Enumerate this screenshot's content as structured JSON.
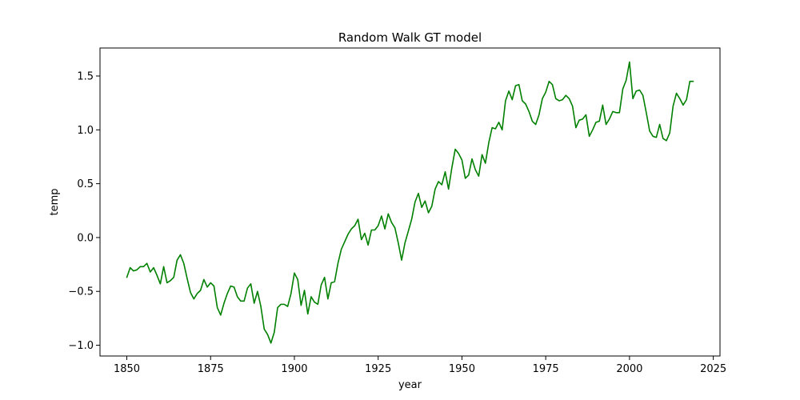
{
  "chart_data": {
    "type": "line",
    "title": "Random Walk GT model",
    "xlabel": "year",
    "ylabel": "temp",
    "xlim": [
      1842,
      2027
    ],
    "ylim": [
      -1.1,
      1.76
    ],
    "xticks": [
      1850,
      1875,
      1900,
      1925,
      1950,
      1975,
      2000,
      2025
    ],
    "yticks": [
      -1.0,
      -0.5,
      0.0,
      0.5,
      1.0,
      1.5
    ],
    "grid": false,
    "line_color": "#008000",
    "x_start": 1850,
    "series": [
      {
        "values": [
          -0.37,
          -0.28,
          -0.31,
          -0.3,
          -0.27,
          -0.27,
          -0.24,
          -0.32,
          -0.28,
          -0.35,
          -0.43,
          -0.27,
          -0.42,
          -0.4,
          -0.37,
          -0.21,
          -0.16,
          -0.24,
          -0.38,
          -0.51,
          -0.57,
          -0.52,
          -0.49,
          -0.39,
          -0.46,
          -0.42,
          -0.45,
          -0.65,
          -0.72,
          -0.61,
          -0.52,
          -0.45,
          -0.46,
          -0.55,
          -0.59,
          -0.59,
          -0.47,
          -0.43,
          -0.61,
          -0.5,
          -0.64,
          -0.85,
          -0.9,
          -0.98,
          -0.88,
          -0.65,
          -0.62,
          -0.62,
          -0.64,
          -0.52,
          -0.33,
          -0.39,
          -0.63,
          -0.49,
          -0.71,
          -0.55,
          -0.6,
          -0.62,
          -0.44,
          -0.37,
          -0.57,
          -0.42,
          -0.41,
          -0.24,
          -0.11,
          -0.04,
          0.03,
          0.08,
          0.11,
          0.17,
          -0.02,
          0.04,
          -0.07,
          0.07,
          0.07,
          0.11,
          0.2,
          0.08,
          0.22,
          0.14,
          0.09,
          -0.05,
          -0.21,
          -0.05,
          0.06,
          0.17,
          0.33,
          0.41,
          0.28,
          0.34,
          0.23,
          0.29,
          0.45,
          0.52,
          0.49,
          0.61,
          0.45,
          0.65,
          0.82,
          0.78,
          0.72,
          0.55,
          0.58,
          0.73,
          0.63,
          0.57,
          0.77,
          0.69,
          0.88,
          1.02,
          1.01,
          1.07,
          1.0,
          1.27,
          1.36,
          1.28,
          1.41,
          1.42,
          1.27,
          1.24,
          1.17,
          1.08,
          1.05,
          1.14,
          1.29,
          1.35,
          1.45,
          1.42,
          1.29,
          1.27,
          1.28,
          1.32,
          1.29,
          1.22,
          1.02,
          1.09,
          1.1,
          1.14,
          0.94,
          1.0,
          1.07,
          1.08,
          1.23,
          1.05,
          1.1,
          1.17,
          1.16,
          1.16,
          1.38,
          1.46,
          1.63,
          1.29,
          1.36,
          1.37,
          1.32,
          1.16,
          0.99,
          0.94,
          0.93,
          1.05,
          0.92,
          0.9,
          0.97,
          1.22,
          1.34,
          1.29,
          1.23,
          1.28,
          1.45,
          1.45
        ]
      }
    ]
  }
}
